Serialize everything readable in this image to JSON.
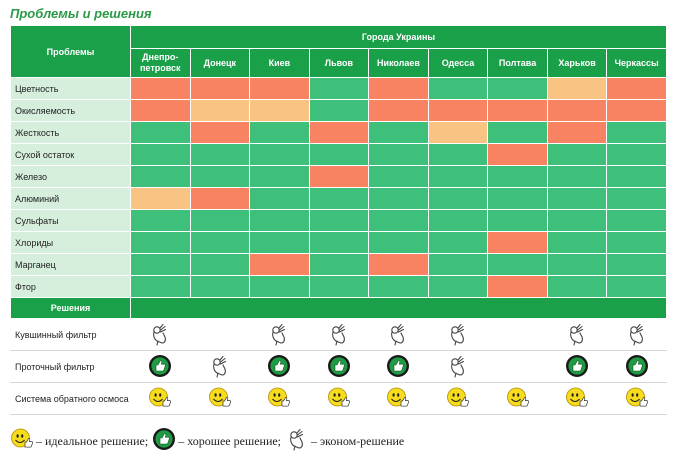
{
  "title": "Проблемы и решения",
  "header": {
    "problems_label": "Проблемы",
    "cities_group_label": "Города Украины",
    "cities": [
      "Днепро-\nпетровск",
      "Донецк",
      "Киев",
      "Львов",
      "Николаев",
      "Одесса",
      "Полтава",
      "Харьков",
      "Черкассы"
    ]
  },
  "colors": {
    "green": "#3fc07a",
    "red": "#f78363",
    "orange": "#f9c383"
  },
  "problems": [
    {
      "name": "Цветность",
      "levels": [
        "red",
        "red",
        "red",
        "green",
        "red",
        "green",
        "green",
        "orange",
        "red"
      ]
    },
    {
      "name": "Окисляемость",
      "levels": [
        "red",
        "orange",
        "orange",
        "green",
        "red",
        "red",
        "red",
        "red",
        "red"
      ]
    },
    {
      "name": "Жесткость",
      "levels": [
        "green",
        "red",
        "green",
        "red",
        "green",
        "orange",
        "green",
        "red",
        "green"
      ]
    },
    {
      "name": "Сухой остаток",
      "levels": [
        "green",
        "green",
        "green",
        "green",
        "green",
        "green",
        "red",
        "green",
        "green"
      ]
    },
    {
      "name": "Железо",
      "levels": [
        "green",
        "green",
        "green",
        "red",
        "green",
        "green",
        "green",
        "green",
        "green"
      ]
    },
    {
      "name": "Алюминий",
      "levels": [
        "orange",
        "red",
        "green",
        "green",
        "green",
        "green",
        "green",
        "green",
        "green"
      ]
    },
    {
      "name": "Сульфаты",
      "levels": [
        "green",
        "green",
        "green",
        "green",
        "green",
        "green",
        "green",
        "green",
        "green"
      ]
    },
    {
      "name": "Хлориды",
      "levels": [
        "green",
        "green",
        "green",
        "green",
        "green",
        "green",
        "red",
        "green",
        "green"
      ]
    },
    {
      "name": "Марганец",
      "levels": [
        "green",
        "green",
        "red",
        "green",
        "red",
        "green",
        "green",
        "green",
        "green"
      ]
    },
    {
      "name": "Фтор",
      "levels": [
        "green",
        "green",
        "green",
        "green",
        "green",
        "green",
        "red",
        "green",
        "green"
      ]
    }
  ],
  "solutions_label": "Решения",
  "solutions": [
    {
      "name": "Кувшинный фильтр",
      "marks": [
        "eco",
        "none",
        "eco",
        "eco",
        "eco",
        "eco",
        "none",
        "eco",
        "eco"
      ]
    },
    {
      "name": "Проточный фильтр",
      "marks": [
        "good",
        "eco",
        "good",
        "good",
        "good",
        "eco",
        "none",
        "good",
        "good"
      ]
    },
    {
      "name": "Система обратного осмоса",
      "marks": [
        "ideal",
        "ideal",
        "ideal",
        "ideal",
        "ideal",
        "ideal",
        "ideal",
        "ideal",
        "ideal"
      ]
    }
  ],
  "legend": {
    "ideal": "– идеальное решение;",
    "good": "– хорошее решение;",
    "eco": "– эконом-решение"
  }
}
